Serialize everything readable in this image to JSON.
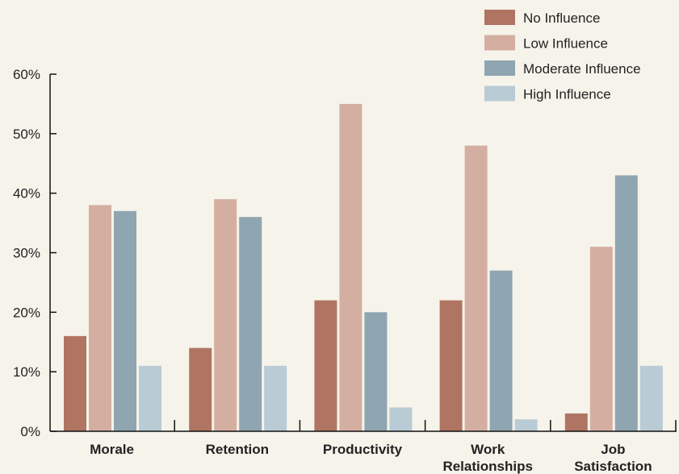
{
  "chart_data": {
    "type": "bar",
    "categories": [
      [
        "Morale"
      ],
      [
        "Retention"
      ],
      [
        "Productivity"
      ],
      [
        "Work",
        "Relationships"
      ],
      [
        "Job",
        "Satisfaction"
      ]
    ],
    "series": [
      {
        "name": "No Influence",
        "color": "#b07562",
        "values": [
          16,
          14,
          22,
          22,
          3
        ]
      },
      {
        "name": "Low Influence",
        "color": "#d4afa1",
        "values": [
          38,
          39,
          55,
          48,
          31
        ]
      },
      {
        "name": "Moderate Influence",
        "color": "#8fa5b1",
        "values": [
          37,
          36,
          20,
          27,
          43
        ]
      },
      {
        "name": "High Influence",
        "color": "#b9cbd4",
        "values": [
          11,
          11,
          4,
          2,
          11
        ]
      }
    ],
    "ylim": [
      0,
      60
    ],
    "yticks": [
      0,
      10,
      20,
      30,
      40,
      50,
      60
    ],
    "ytick_labels": [
      "0%",
      "10%",
      "20%",
      "30%",
      "40%",
      "50%",
      "60%"
    ],
    "legend_position": "top-right",
    "grid": false
  }
}
